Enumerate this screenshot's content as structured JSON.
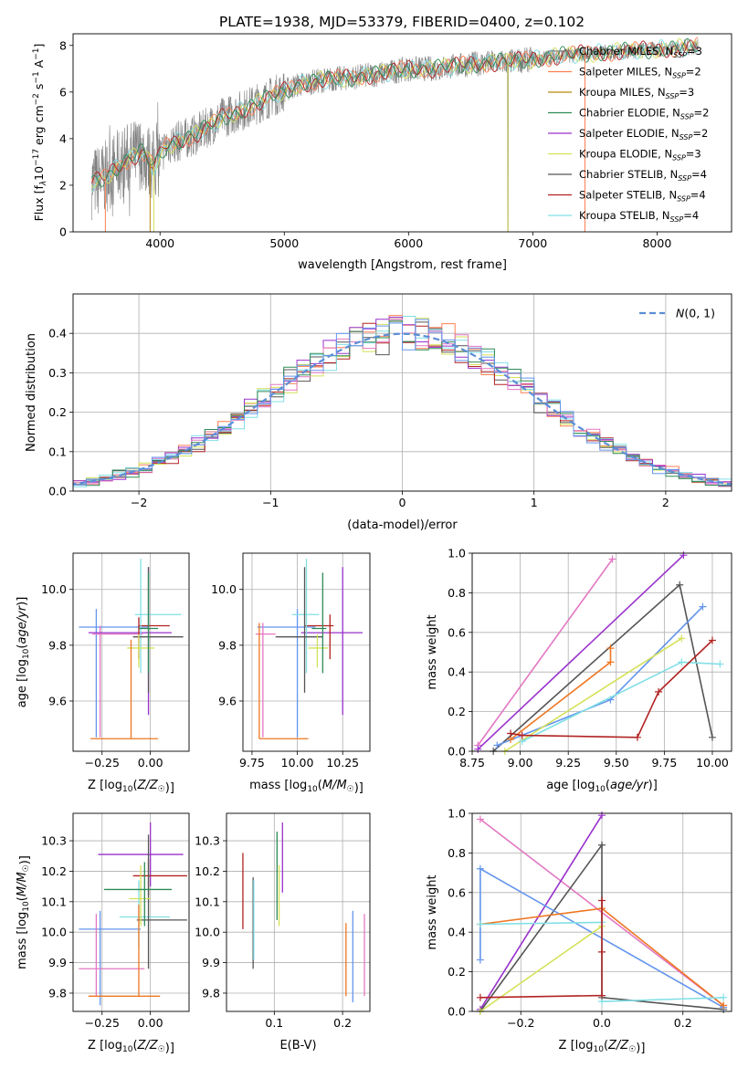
{
  "colors": {
    "chabrier_miles": "#808080",
    "salpeter_miles": "#ff7f50",
    "kroupa_miles": "#b8860b",
    "chabrier_elodie": "#2e8b57",
    "salpeter_elodie": "#9932cc",
    "kroupa_elodie": "#d4e157",
    "chabrier_stelib": "#555555",
    "salpeter_stelib": "#b22222",
    "kroupa_stelib": "#80dfe6",
    "pink": "#e377c2",
    "blue": "#6495ed",
    "orange": "#ee7722",
    "normal": "#5b8ed6"
  },
  "chart_data": [
    {
      "id": "spectrum",
      "type": "line",
      "title": "PLATE=1938, MJD=53379, FIBERID=0400, z=0.102",
      "xlabel": "wavelength [Angstrom, rest frame]",
      "ylabel": "Flux [f_λ 10^-17 erg cm^-2 s^-1 A^-1]",
      "xlim": [
        3300,
        8600
      ],
      "ylim": [
        0,
        8.5
      ],
      "xticks": [
        "4000",
        "5000",
        "6000",
        "7000",
        "8000"
      ],
      "yticks": [
        "0",
        "2",
        "4",
        "6",
        "8"
      ],
      "legend_position": "top-right",
      "legend": [
        {
          "base": "Chabrier MILES, N",
          "n": "3",
          "color": "chabrier_miles"
        },
        {
          "base": "Salpeter MILES, N",
          "n": "2",
          "color": "salpeter_miles"
        },
        {
          "base": "Kroupa MILES, N",
          "n": "3",
          "color": "kroupa_miles"
        },
        {
          "base": "Chabrier ELODIE, N",
          "n": "2",
          "color": "chabrier_elodie"
        },
        {
          "base": "Salpeter ELODIE, N",
          "n": "2",
          "color": "salpeter_elodie"
        },
        {
          "base": "Kroupa ELODIE, N",
          "n": "3",
          "color": "kroupa_elodie"
        },
        {
          "base": "Chabrier STELIB, N",
          "n": "4",
          "color": "chabrier_stelib"
        },
        {
          "base": "Salpeter STELIB, N",
          "n": "4",
          "color": "salpeter_stelib"
        },
        {
          "base": "Kroupa STELIB, N",
          "n": "4",
          "color": "kroupa_stelib"
        }
      ],
      "continuum": [
        [
          3450,
          2.1
        ],
        [
          3550,
          2.3
        ],
        [
          3700,
          3.0
        ],
        [
          3850,
          3.4
        ],
        [
          3950,
          2.8
        ],
        [
          4050,
          3.7
        ],
        [
          4300,
          4.2
        ],
        [
          4500,
          4.9
        ],
        [
          4700,
          5.3
        ],
        [
          4900,
          5.8
        ],
        [
          5100,
          6.3
        ],
        [
          5300,
          6.5
        ],
        [
          5500,
          6.6
        ],
        [
          5800,
          6.8
        ],
        [
          6000,
          7.0
        ],
        [
          6200,
          7.0
        ],
        [
          6500,
          7.2
        ],
        [
          6800,
          7.3
        ],
        [
          7000,
          7.4
        ],
        [
          7300,
          7.6
        ],
        [
          7600,
          7.7
        ],
        [
          7900,
          7.8
        ],
        [
          8200,
          7.9
        ],
        [
          8330,
          7.95
        ]
      ]
    },
    {
      "id": "residuals",
      "type": "histogram",
      "xlabel": "(data-model)/error",
      "ylabel": "Normed distribution",
      "xlim": [
        -2.5,
        2.5
      ],
      "ylim": [
        0,
        0.5
      ],
      "xticks": [
        "−2",
        "−1",
        "0",
        "1",
        "2"
      ],
      "yticks": [
        "0.0",
        "0.1",
        "0.2",
        "0.3",
        "0.4"
      ],
      "legend": "N(0,1)",
      "legend_position": "top-right",
      "bin_width": 0.1
    },
    {
      "id": "age-vs-Z",
      "type": "scatter",
      "xlabel": "Z [log10(Z/Z☉)]",
      "ylabel": "age  [log10(age/yr)]",
      "xlim": [
        -0.4,
        0.2
      ],
      "ylim": [
        9.42,
        10.13
      ],
      "xticks": [
        "−0.25",
        "0.00"
      ],
      "yticks": [
        "9.6",
        "9.8",
        "10.0"
      ],
      "points": [
        {
          "x": -0.28,
          "xlo": -0.37,
          "xhi": -0.01,
          "y": 9.865,
          "ylo": 9.47,
          "yhi": 9.93,
          "color": "blue"
        },
        {
          "x": -0.26,
          "xlo": -0.3,
          "xhi": -0.04,
          "y": 9.84,
          "ylo": 9.47,
          "yhi": 9.87,
          "color": "pink"
        },
        {
          "x": -0.01,
          "xlo": -0.32,
          "xhi": 0.11,
          "y": 9.845,
          "ylo": 9.55,
          "yhi": 10.08,
          "color": "salpeter_elodie"
        },
        {
          "x": -0.06,
          "xlo": -0.06,
          "xhi": 0.1,
          "y": 9.87,
          "ylo": 9.75,
          "yhi": 9.9,
          "color": "salpeter_stelib"
        },
        {
          "x": -0.05,
          "xlo": -0.08,
          "xhi": 0.16,
          "y": 9.91,
          "ylo": 9.7,
          "yhi": 10.11,
          "color": "kroupa_stelib"
        },
        {
          "x": -0.01,
          "xlo": -0.09,
          "xhi": 0.17,
          "y": 9.83,
          "ylo": 9.63,
          "yhi": 10.08,
          "color": "chabrier_stelib"
        },
        {
          "x": -0.06,
          "xlo": -0.12,
          "xhi": 0.02,
          "y": 9.79,
          "ylo": 9.72,
          "yhi": 9.84,
          "color": "kroupa_elodie"
        },
        {
          "x": -0.1,
          "xlo": -0.31,
          "xhi": 0.04,
          "y": 9.465,
          "ylo": 9.465,
          "yhi": 9.82,
          "color": "orange"
        },
        {
          "x": -0.01,
          "xlo": -0.06,
          "xhi": 0.04,
          "y": 9.86,
          "ylo": 9.7,
          "yhi": 10.06,
          "color": "chabrier_elodie"
        }
      ]
    },
    {
      "id": "age-vs-mass",
      "type": "scatter",
      "xlabel": "mass [log10(M/M☉)]",
      "ylabel": "",
      "xlim": [
        9.7,
        10.4
      ],
      "ylim": [
        9.42,
        10.13
      ],
      "xticks": [
        "9.75",
        "10.00",
        "10.25"
      ],
      "yticks": [
        "9.6",
        "9.8",
        "10.0"
      ],
      "points": [
        {
          "x": 10.0,
          "xlo": 9.78,
          "xhi": 10.1,
          "y": 9.865,
          "ylo": 9.47,
          "yhi": 9.93,
          "color": "blue"
        },
        {
          "x": 9.81,
          "xlo": 9.77,
          "xhi": 9.88,
          "y": 9.84,
          "ylo": 9.47,
          "yhi": 9.88,
          "color": "pink"
        },
        {
          "x": 10.25,
          "xlo": 10.02,
          "xhi": 10.36,
          "y": 9.845,
          "ylo": 9.55,
          "yhi": 10.08,
          "color": "salpeter_elodie"
        },
        {
          "x": 10.18,
          "xlo": 10.04,
          "xhi": 10.2,
          "y": 9.87,
          "ylo": 9.75,
          "yhi": 9.91,
          "color": "salpeter_stelib"
        },
        {
          "x": 10.05,
          "xlo": 9.97,
          "xhi": 10.12,
          "y": 9.91,
          "ylo": 9.7,
          "yhi": 10.11,
          "color": "kroupa_stelib"
        },
        {
          "x": 10.04,
          "xlo": 9.88,
          "xhi": 10.14,
          "y": 9.83,
          "ylo": 9.63,
          "yhi": 10.08,
          "color": "chabrier_stelib"
        },
        {
          "x": 10.11,
          "xlo": 10.06,
          "xhi": 10.17,
          "y": 9.79,
          "ylo": 9.72,
          "yhi": 9.84,
          "color": "kroupa_elodie"
        },
        {
          "x": 9.79,
          "xlo": 9.79,
          "xhi": 10.06,
          "y": 9.465,
          "ylo": 9.465,
          "yhi": 9.88,
          "color": "orange"
        },
        {
          "x": 10.14,
          "xlo": 10.08,
          "xhi": 10.16,
          "y": 9.86,
          "ylo": 9.7,
          "yhi": 10.06,
          "color": "chabrier_elodie"
        }
      ]
    },
    {
      "id": "mass-weight-vs-age",
      "type": "line",
      "xlabel": "age  [log10(age/yr)]",
      "ylabel": "mass weight",
      "xlim": [
        8.75,
        10.1
      ],
      "ylim": [
        0,
        1.0
      ],
      "xticks": [
        "8.75",
        "9.00",
        "9.25",
        "9.50",
        "9.75",
        "10.00"
      ],
      "yticks": [
        "0.0",
        "0.2",
        "0.4",
        "0.6",
        "0.8",
        "1.0"
      ],
      "series": [
        {
          "color": "pink",
          "points": [
            [
              8.78,
              0.03
            ],
            [
              9.48,
              0.97
            ]
          ]
        },
        {
          "color": "salpeter_elodie",
          "points": [
            [
              8.78,
              0.01
            ],
            [
              9.85,
              0.99
            ]
          ]
        },
        {
          "color": "chabrier_stelib",
          "points": [
            [
              8.86,
              0.0
            ],
            [
              9.83,
              0.84
            ],
            [
              10.0,
              0.07
            ]
          ]
        },
        {
          "color": "blue",
          "points": [
            [
              8.88,
              0.03
            ],
            [
              9.47,
              0.26
            ],
            [
              9.95,
              0.73
            ]
          ]
        },
        {
          "color": "kroupa_elodie",
          "points": [
            [
              8.92,
              0.0
            ],
            [
              9.84,
              0.57
            ]
          ]
        },
        {
          "color": "orange",
          "points": [
            [
              8.95,
              0.06
            ],
            [
              9.47,
              0.45
            ],
            [
              9.47,
              0.52
            ]
          ]
        },
        {
          "color": "kroupa_stelib",
          "points": [
            [
              9.01,
              0.05
            ],
            [
              9.84,
              0.45
            ],
            [
              10.04,
              0.44
            ]
          ]
        },
        {
          "color": "salpeter_stelib",
          "points": [
            [
              8.95,
              0.09
            ],
            [
              9.01,
              0.08
            ],
            [
              9.61,
              0.07
            ],
            [
              9.72,
              0.3
            ],
            [
              10.0,
              0.56
            ]
          ]
        }
      ]
    },
    {
      "id": "mass-vs-Z",
      "type": "scatter",
      "xlabel": "Z [log10(Z/Z☉)]",
      "ylabel": "mass [log10(M/M☉)]",
      "xlim": [
        -0.4,
        0.2
      ],
      "ylim": [
        9.74,
        10.39
      ],
      "xticks": [
        "−0.25",
        "0.00"
      ],
      "yticks": [
        "9.8",
        "9.9",
        "10.0",
        "10.1",
        "10.2",
        "10.3"
      ],
      "points": [
        {
          "x": -0.26,
          "xlo": -0.37,
          "xhi": -0.05,
          "y": 10.01,
          "ylo": 9.76,
          "yhi": 10.07,
          "color": "blue"
        },
        {
          "x": -0.28,
          "xlo": -0.37,
          "xhi": -0.03,
          "y": 9.88,
          "ylo": 9.79,
          "yhi": 10.06,
          "color": "pink"
        },
        {
          "x": 0.0,
          "xlo": -0.27,
          "xhi": 0.17,
          "y": 10.255,
          "ylo": 10.15,
          "yhi": 10.36,
          "color": "salpeter_elodie"
        },
        {
          "x": -0.01,
          "xlo": -0.09,
          "xhi": 0.19,
          "y": 10.185,
          "ylo": 10.12,
          "yhi": 10.24,
          "color": "salpeter_stelib"
        },
        {
          "x": -0.06,
          "xlo": -0.16,
          "xhi": 0.1,
          "y": 10.05,
          "ylo": 9.95,
          "yhi": 10.17,
          "color": "kroupa_stelib"
        },
        {
          "x": -0.01,
          "xlo": -0.07,
          "xhi": 0.19,
          "y": 10.04,
          "ylo": 9.88,
          "yhi": 10.32,
          "color": "chabrier_stelib"
        },
        {
          "x": -0.05,
          "xlo": -0.11,
          "xhi": 0.0,
          "y": 10.11,
          "ylo": 10.02,
          "yhi": 10.22,
          "color": "kroupa_elodie"
        },
        {
          "x": -0.06,
          "xlo": -0.32,
          "xhi": 0.05,
          "y": 9.79,
          "ylo": 9.79,
          "yhi": 10.09,
          "color": "orange"
        },
        {
          "x": -0.03,
          "xlo": -0.24,
          "xhi": 0.11,
          "y": 10.14,
          "ylo": 10.02,
          "yhi": 10.23,
          "color": "chabrier_elodie"
        }
      ]
    },
    {
      "id": "mass-vs-EBV",
      "type": "scatter",
      "xlabel": "E(B-V)",
      "ylabel": "",
      "xlim": [
        0.03,
        0.24
      ],
      "ylim": [
        9.74,
        10.39
      ],
      "xticks": [
        "0.1",
        "0.2"
      ],
      "yticks": [
        "9.8",
        "9.9",
        "10.0",
        "10.1",
        "10.2",
        "10.3"
      ],
      "points": [
        {
          "x": 0.054,
          "y": 10.14,
          "ylo": 10.01,
          "yhi": 10.26,
          "color": "salpeter_stelib"
        },
        {
          "x": 0.069,
          "y": 10.04,
          "ylo": 9.88,
          "yhi": 10.18,
          "color": "chabrier_stelib"
        },
        {
          "x": 0.07,
          "y": 10.05,
          "ylo": 9.91,
          "yhi": 10.17,
          "color": "kroupa_stelib"
        },
        {
          "x": 0.104,
          "y": 10.14,
          "ylo": 10.04,
          "yhi": 10.33,
          "color": "chabrier_elodie"
        },
        {
          "x": 0.107,
          "y": 10.12,
          "ylo": 10.02,
          "yhi": 10.22,
          "color": "kroupa_elodie"
        },
        {
          "x": 0.112,
          "y": 10.25,
          "ylo": 10.13,
          "yhi": 10.36,
          "color": "salpeter_elodie"
        },
        {
          "x": 0.205,
          "y": 9.88,
          "ylo": 9.79,
          "yhi": 10.03,
          "color": "orange"
        },
        {
          "x": 0.215,
          "y": 10.01,
          "ylo": 9.77,
          "yhi": 10.07,
          "color": "blue"
        },
        {
          "x": 0.232,
          "y": 9.88,
          "ylo": 9.79,
          "yhi": 10.06,
          "color": "pink"
        }
      ]
    },
    {
      "id": "mass-weight-vs-Z",
      "type": "line",
      "xlabel": "Z [log10(Z/Z☉)]",
      "ylabel": "mass weight",
      "xlim": [
        -0.32,
        0.32
      ],
      "ylim": [
        0,
        1.0
      ],
      "xticks": [
        "−0.2",
        "0.0",
        "0.2"
      ],
      "yticks": [
        "0.0",
        "0.2",
        "0.4",
        "0.6",
        "0.8",
        "1.0"
      ],
      "series": [
        {
          "color": "pink",
          "points": [
            [
              -0.3,
              0.97
            ],
            [
              0.3,
              0.03
            ]
          ]
        },
        {
          "color": "salpeter_elodie",
          "points": [
            [
              -0.3,
              0.01
            ],
            [
              0.0,
              0.99
            ]
          ]
        },
        {
          "color": "chabrier_stelib",
          "points": [
            [
              -0.3,
              0.0
            ],
            [
              0.0,
              0.84
            ],
            [
              0.0,
              0.07
            ],
            [
              0.3,
              0.01
            ]
          ]
        },
        {
          "color": "blue",
          "points": [
            [
              -0.3,
              0.26
            ],
            [
              -0.3,
              0.72
            ],
            [
              0.3,
              0.02
            ]
          ]
        },
        {
          "color": "kroupa_elodie",
          "points": [
            [
              -0.3,
              0.0
            ],
            [
              0.0,
              0.43
            ]
          ]
        },
        {
          "color": "orange",
          "points": [
            [
              -0.3,
              0.44
            ],
            [
              0.0,
              0.52
            ],
            [
              0.3,
              0.03
            ]
          ]
        },
        {
          "color": "kroupa_stelib",
          "points": [
            [
              -0.3,
              0.44
            ],
            [
              0.0,
              0.45
            ],
            [
              0.0,
              0.05
            ],
            [
              0.3,
              0.07
            ]
          ]
        },
        {
          "color": "salpeter_stelib",
          "points": [
            [
              -0.3,
              0.07
            ],
            [
              0.0,
              0.08
            ],
            [
              0.0,
              0.56
            ],
            [
              0.0,
              0.3
            ]
          ]
        }
      ]
    }
  ]
}
